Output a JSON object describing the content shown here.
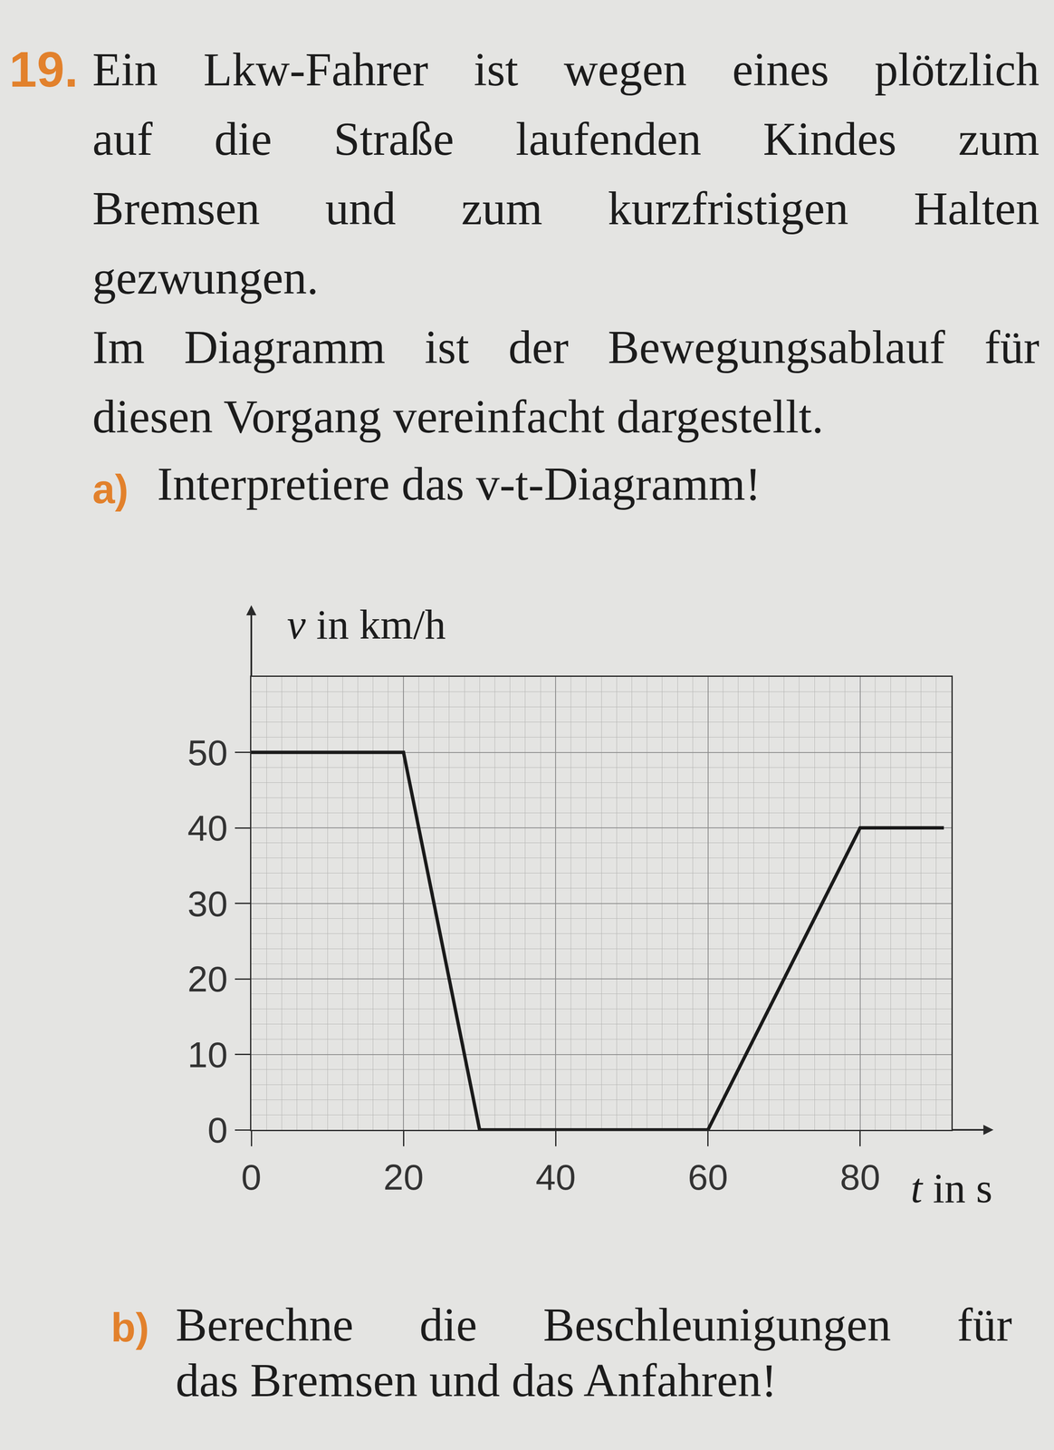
{
  "exercise": {
    "number": "19.",
    "paragraphs": [
      [
        "Ein Lkw-Fahrer ist wegen eines plötzlich",
        "auf die Straße laufenden Kindes zum",
        "Bremsen und zum kurzfristigen Halten",
        "gezwungen."
      ],
      [
        "Im Diagramm ist der Bewegungsablauf für",
        "diesen Vorgang vereinfacht dargestellt."
      ]
    ],
    "parts": [
      {
        "label": "a)",
        "lines": [
          "Interpretiere das v-t-Diagramm!"
        ]
      },
      {
        "label": "b)",
        "lines": [
          "Berechne die Beschleunigungen für",
          "das Bremsen und das Anfahren!"
        ]
      }
    ]
  },
  "chart_data": {
    "type": "line",
    "x_label": "t in s",
    "y_label": "v in km/h",
    "x": [
      0,
      20,
      30,
      60,
      80,
      91
    ],
    "values": [
      50,
      50,
      0,
      0,
      40,
      40
    ],
    "color": "#1a1a1a",
    "xlim": [
      0,
      92
    ],
    "ylim": [
      0,
      60
    ],
    "xticks": [
      0,
      20,
      40,
      60,
      80
    ],
    "yticks": [
      0,
      10,
      20,
      30,
      40,
      50
    ],
    "grid": true
  }
}
